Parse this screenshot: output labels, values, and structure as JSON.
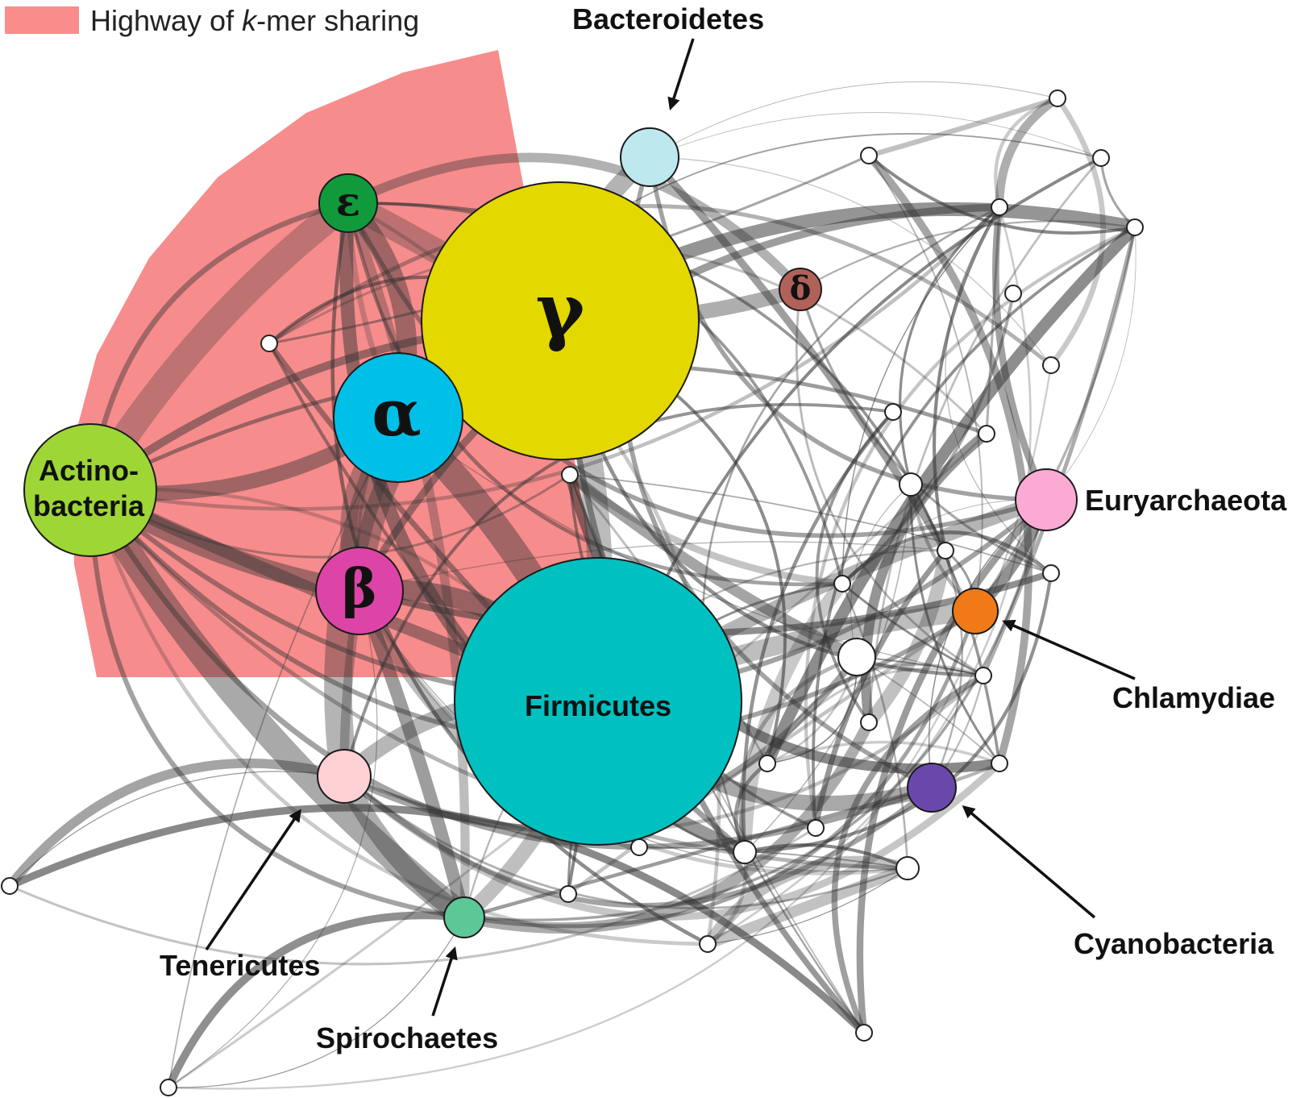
{
  "legend": {
    "swatch_color": "#fa8c8c",
    "label_prefix": "Highway of ",
    "label_italic": "k",
    "label_suffix": "-mer sharing"
  },
  "colors": {
    "gamma": "#e3d800",
    "firmicutes": "#00c0c0",
    "alpha": "#00c0e8",
    "beta": "#dd44a8",
    "epsilon": "#109a3c",
    "delta": "#b06258",
    "actinobacteria": "#9ed636",
    "bacteroidetes": "#bde8ee",
    "euryarchaeota": "#fbaad3",
    "chlamydiae": "#f07a18",
    "cyanobacteria": "#6a48ab",
    "tenericutes": "#fdd0d3",
    "spirochaetes": "#5cc898",
    "edge": "#333333",
    "highway": "#f46060"
  },
  "nodes": {
    "gamma": {
      "symbol": "γ",
      "icon": "gamma-glyph"
    },
    "alpha": {
      "symbol": "α",
      "icon": "alpha-glyph"
    },
    "beta": {
      "symbol": "β",
      "icon": "beta-glyph"
    },
    "epsilon": {
      "symbol": "ε",
      "icon": "epsilon-glyph"
    },
    "delta": {
      "symbol": "δ",
      "icon": "delta-glyph"
    },
    "firmicutes": {
      "label": "Firmicutes"
    },
    "actinobacteria": {
      "label_line1": "Actino-",
      "label_line2": "bacteria"
    }
  },
  "callouts": {
    "bacteroidetes": "Bacteroidetes",
    "euryarchaeota": "Euryarchaeota",
    "chlamydiae": "Chlamydiae",
    "cyanobacteria": "Cyanobacteria",
    "tenericutes": "Tenericutes",
    "spirochaetes": "Spirochaetes"
  }
}
